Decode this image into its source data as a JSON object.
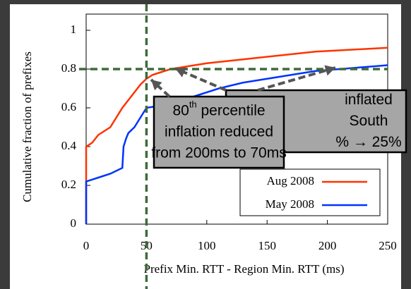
{
  "chart_data": {
    "type": "line",
    "xlabel": "Prefix Min. RTT - Region Min. RTT (ms)",
    "ylabel": "Cumulative fraction of prefixes",
    "xlim": [
      0,
      250
    ],
    "ylim": [
      0,
      1
    ],
    "xticks": [
      0,
      50,
      100,
      150,
      200,
      250
    ],
    "yticks": [
      0,
      0.2,
      0.4,
      0.6,
      0.8,
      1
    ],
    "reference_x": 50,
    "reference_y": 0.8,
    "reference_color": "#3e6b3a",
    "series": [
      {
        "name": "Aug 2008",
        "color": "#ff3300",
        "x": [
          0,
          0,
          5,
          10,
          15,
          20,
          25,
          30,
          35,
          40,
          45,
          50,
          55,
          60,
          70,
          80,
          100,
          130,
          160,
          190,
          220,
          250
        ],
        "values": [
          0,
          0.4,
          0.42,
          0.46,
          0.48,
          0.5,
          0.55,
          0.6,
          0.64,
          0.68,
          0.72,
          0.75,
          0.77,
          0.78,
          0.8,
          0.81,
          0.83,
          0.85,
          0.87,
          0.89,
          0.9,
          0.91
        ]
      },
      {
        "name": "May 2008",
        "color": "#0033ff",
        "x": [
          0,
          0,
          10,
          20,
          30,
          31,
          33,
          35,
          40,
          45,
          50,
          60,
          70,
          90,
          110,
          130,
          150,
          170,
          190,
          210,
          230,
          250
        ],
        "values": [
          0,
          0.22,
          0.24,
          0.26,
          0.29,
          0.4,
          0.44,
          0.47,
          0.5,
          0.55,
          0.6,
          0.61,
          0.62,
          0.66,
          0.7,
          0.73,
          0.75,
          0.77,
          0.79,
          0.8,
          0.81,
          0.82
        ]
      }
    ],
    "annotations": [
      {
        "lines": [
          [
            "inflated"
          ],
          [
            "South"
          ],
          [
            "% → 25%"
          ]
        ]
      },
      {
        "lines": [
          [
            "80",
            "th",
            " percentile"
          ],
          [
            "inflation reduced"
          ],
          [
            "from 200ms to 70ms"
          ]
        ]
      }
    ]
  }
}
